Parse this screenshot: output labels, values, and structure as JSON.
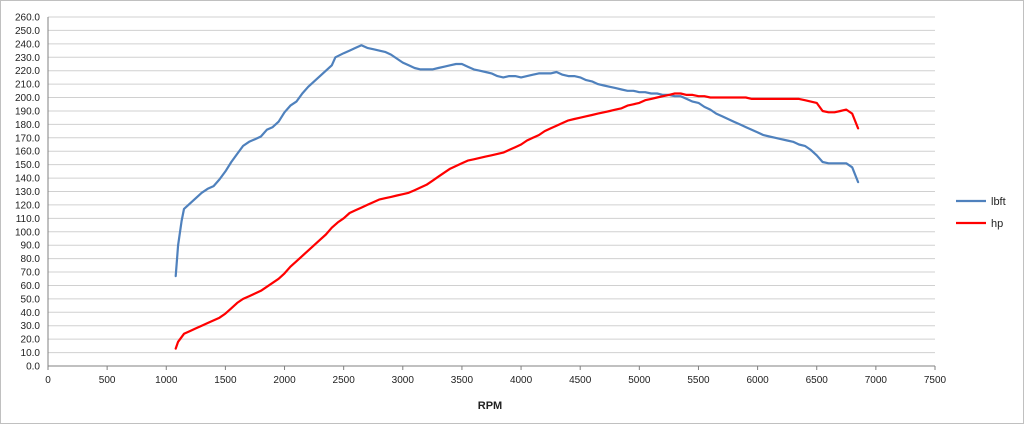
{
  "chart_data": {
    "type": "line",
    "title": "",
    "xlabel": "RPM",
    "ylabel": "",
    "xlim": [
      0,
      7500
    ],
    "ylim": [
      0,
      260
    ],
    "x_ticks": [
      0,
      500,
      1000,
      1500,
      2000,
      2500,
      3000,
      3500,
      4000,
      4500,
      5000,
      5500,
      6000,
      6500,
      7000,
      7500
    ],
    "y_ticks": [
      "0.0",
      "10.0",
      "20.0",
      "30.0",
      "40.0",
      "50.0",
      "60.0",
      "70.0",
      "80.0",
      "90.0",
      "100.0",
      "110.0",
      "120.0",
      "130.0",
      "140.0",
      "150.0",
      "160.0",
      "170.0",
      "180.0",
      "190.0",
      "200.0",
      "210.0",
      "220.0",
      "230.0",
      "240.0",
      "250.0",
      "260.0"
    ],
    "grid": "horizontal",
    "legend_position": "right",
    "series": [
      {
        "name": "lbft",
        "color": "#4f81bd",
        "x": [
          1080,
          1100,
          1130,
          1150,
          1200,
          1250,
          1300,
          1350,
          1400,
          1450,
          1500,
          1550,
          1600,
          1650,
          1700,
          1750,
          1800,
          1850,
          1900,
          1950,
          2000,
          2050,
          2100,
          2150,
          2200,
          2250,
          2300,
          2350,
          2400,
          2430,
          2500,
          2550,
          2600,
          2650,
          2700,
          2750,
          2800,
          2850,
          2900,
          2950,
          3000,
          3050,
          3100,
          3150,
          3200,
          3250,
          3300,
          3350,
          3400,
          3450,
          3500,
          3550,
          3600,
          3650,
          3700,
          3750,
          3800,
          3850,
          3900,
          3950,
          4000,
          4050,
          4100,
          4150,
          4200,
          4250,
          4300,
          4350,
          4400,
          4450,
          4500,
          4550,
          4600,
          4650,
          4700,
          4750,
          4800,
          4850,
          4900,
          4950,
          5000,
          5050,
          5100,
          5150,
          5200,
          5250,
          5300,
          5350,
          5400,
          5450,
          5500,
          5550,
          5600,
          5650,
          5700,
          5750,
          5800,
          5850,
          5900,
          5950,
          6000,
          6050,
          6100,
          6150,
          6200,
          6250,
          6300,
          6350,
          6400,
          6450,
          6500,
          6550,
          6600,
          6650,
          6700,
          6750,
          6800,
          6850
        ],
        "values": [
          67,
          90,
          108,
          117,
          121,
          125,
          129,
          132,
          134,
          139,
          145,
          152,
          158,
          164,
          167,
          169,
          171,
          176,
          178,
          182,
          189,
          194,
          197,
          203,
          208,
          212,
          216,
          220,
          224,
          230,
          233,
          235,
          237,
          239,
          237,
          236,
          235,
          234,
          232,
          229,
          226,
          224,
          222,
          221,
          221,
          221,
          222,
          223,
          224,
          225,
          225,
          223,
          221,
          220,
          219,
          218,
          216,
          215,
          216,
          216,
          215,
          216,
          217,
          218,
          218,
          218,
          219,
          217,
          216,
          216,
          215,
          213,
          212,
          210,
          209,
          208,
          207,
          206,
          205,
          205,
          204,
          204,
          203,
          203,
          202,
          202,
          201,
          201,
          199,
          197,
          196,
          193,
          191,
          188,
          186,
          184,
          182,
          180,
          178,
          176,
          174,
          172,
          171,
          170,
          169,
          168,
          167,
          165,
          164,
          161,
          157,
          152,
          151,
          151,
          151,
          151,
          148,
          137
        ]
      },
      {
        "name": "hp",
        "color": "#ff0000",
        "x": [
          1080,
          1100,
          1150,
          1200,
          1250,
          1300,
          1350,
          1400,
          1450,
          1500,
          1550,
          1600,
          1650,
          1700,
          1750,
          1800,
          1850,
          1900,
          1950,
          2000,
          2050,
          2100,
          2150,
          2200,
          2250,
          2300,
          2350,
          2400,
          2450,
          2500,
          2550,
          2600,
          2650,
          2700,
          2750,
          2800,
          2850,
          2900,
          2950,
          3000,
          3050,
          3100,
          3150,
          3200,
          3250,
          3300,
          3350,
          3400,
          3450,
          3500,
          3550,
          3600,
          3650,
          3700,
          3750,
          3800,
          3850,
          3900,
          3950,
          4000,
          4050,
          4100,
          4150,
          4200,
          4250,
          4300,
          4350,
          4400,
          4450,
          4500,
          4550,
          4600,
          4650,
          4700,
          4750,
          4800,
          4850,
          4900,
          4950,
          5000,
          5050,
          5100,
          5150,
          5200,
          5250,
          5300,
          5350,
          5400,
          5450,
          5500,
          5550,
          5600,
          5650,
          5700,
          5750,
          5800,
          5850,
          5900,
          5950,
          6000,
          6050,
          6100,
          6150,
          6200,
          6250,
          6300,
          6350,
          6400,
          6450,
          6500,
          6550,
          6600,
          6650,
          6700,
          6750,
          6800,
          6850
        ],
        "values": [
          13,
          18,
          24,
          26,
          28,
          30,
          32,
          34,
          36,
          39,
          43,
          47,
          50,
          52,
          54,
          56,
          59,
          62,
          65,
          69,
          74,
          78,
          82,
          86,
          90,
          94,
          98,
          103,
          107,
          110,
          114,
          116,
          118,
          120,
          122,
          124,
          125,
          126,
          127,
          128,
          129,
          131,
          133,
          135,
          138,
          141,
          144,
          147,
          149,
          151,
          153,
          154,
          155,
          156,
          157,
          158,
          159,
          161,
          163,
          165,
          168,
          170,
          172,
          175,
          177,
          179,
          181,
          183,
          184,
          185,
          186,
          187,
          188,
          189,
          190,
          191,
          192,
          194,
          195,
          196,
          198,
          199,
          200,
          201,
          202,
          203,
          203,
          202,
          202,
          201,
          201,
          200,
          200,
          200,
          200,
          200,
          200,
          200,
          199,
          199,
          199,
          199,
          199,
          199,
          199,
          199,
          199,
          198,
          197,
          196,
          190,
          189,
          189,
          190,
          191,
          188,
          177
        ]
      }
    ]
  }
}
